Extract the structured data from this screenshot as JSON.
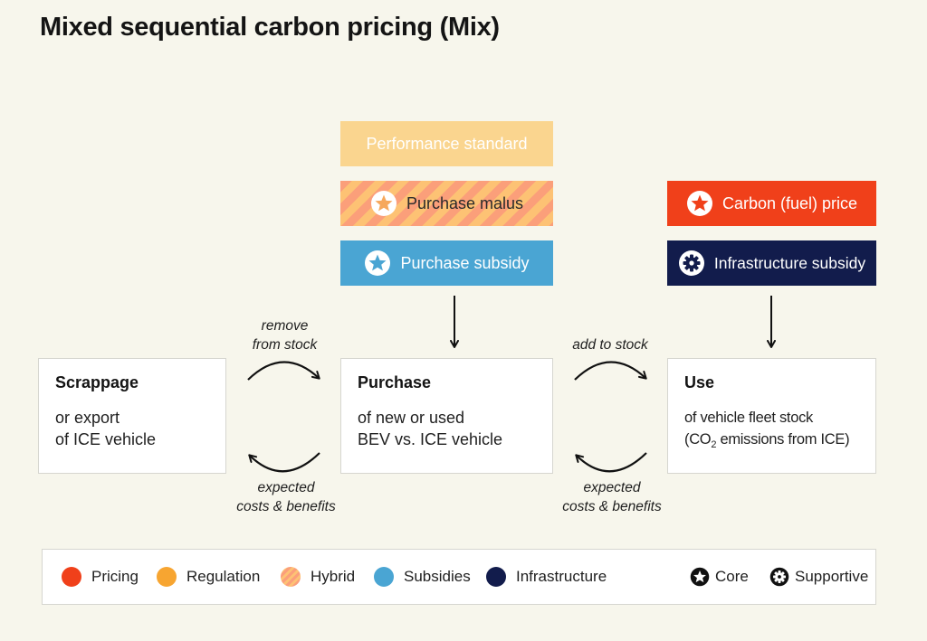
{
  "title": "Mixed sequential carbon pricing (Mix)",
  "policies": {
    "performance_standard": "Performance standard",
    "purchase_malus": "Purchase malus",
    "purchase_subsidy": "Purchase subsidy",
    "carbon_price": "Carbon (fuel) price",
    "infrastructure_subsidy": "Infrastructure subsidy"
  },
  "stages": {
    "scrappage": {
      "title": "Scrappage",
      "desc": "or export\nof ICE vehicle"
    },
    "purchase": {
      "title": "Purchase",
      "desc": "of new or used\nBEV vs. ICE vehicle"
    },
    "use": {
      "title": "Use",
      "desc_line1": "of vehicle fleet stock",
      "desc_line2_pre": "(CO",
      "desc_line2_sub": "2",
      "desc_line2_post": " emissions from ICE)"
    }
  },
  "flows": {
    "remove_from_stock": "remove\nfrom stock",
    "add_to_stock": "add to stock",
    "expected_costs_left": "expected\ncosts & benefits",
    "expected_costs_right": "expected\ncosts & benefits"
  },
  "legend": {
    "pricing": "Pricing",
    "regulation": "Regulation",
    "hybrid": "Hybrid",
    "subsidies": "Subsidies",
    "infrastructure": "Infrastructure",
    "core": "Core",
    "supportive": "Supportive"
  },
  "colors": {
    "pricing": "#f0401a",
    "regulation": "#f7a531",
    "hybrid_a": "#fb9f7a",
    "hybrid_b": "#fdc274",
    "subsidies": "#4aa5d3",
    "infrastructure": "#121c4c",
    "performance_standard": "#fad58f",
    "background": "#f7f6ec"
  },
  "icons": {
    "core": "star-icon",
    "supportive": "gear-icon"
  }
}
